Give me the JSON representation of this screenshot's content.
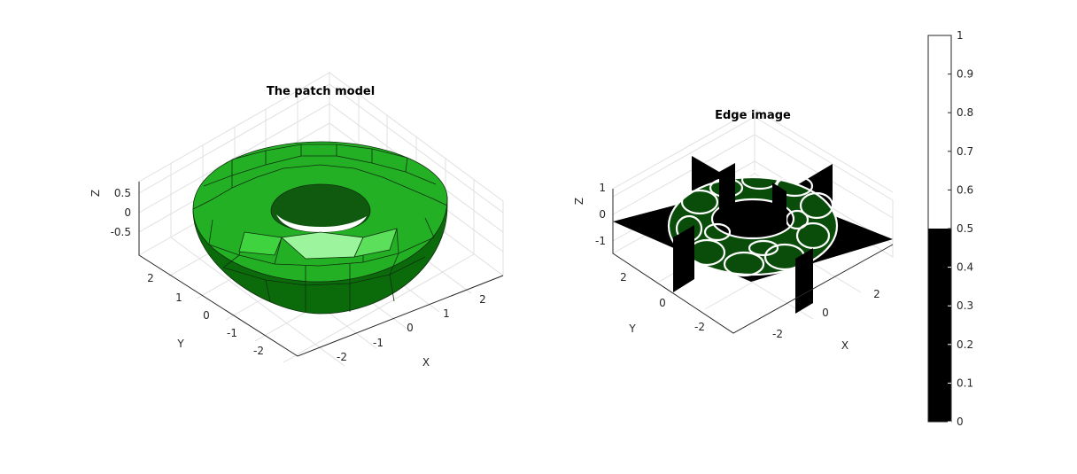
{
  "chart_data": [
    {
      "type": "3d-surface",
      "title": "The patch model",
      "xlabel": "X",
      "ylabel": "Y",
      "zlabel": "Z",
      "xticks": [
        "-2",
        "-1",
        "0",
        "1",
        "2"
      ],
      "yticks": [
        "-2",
        "-1",
        "0",
        "1",
        "2"
      ],
      "zticks": [
        "-0.5",
        "0",
        "0.5"
      ],
      "xlim": [
        -3,
        3
      ],
      "ylim": [
        -3,
        3
      ],
      "zlim": [
        -1,
        1
      ],
      "grid": true,
      "surface": "torus",
      "torus_major_radius": 2,
      "torus_minor_radius": 1,
      "face_color": "#22cc22",
      "edge_color": "#000000"
    },
    {
      "type": "3d-slice",
      "title": "Edge image",
      "xlabel": "X",
      "ylabel": "Y",
      "zlabel": "Z",
      "xticks": [
        "-2",
        "0",
        "2"
      ],
      "yticks": [
        "-2",
        "0",
        "2"
      ],
      "zticks": [
        "-1",
        "0",
        "1"
      ],
      "xlim": [
        -3,
        3
      ],
      "ylim": [
        -3,
        3
      ],
      "zlim": [
        -1.5,
        1.5
      ],
      "grid": true,
      "slice_planes": [
        "x=0",
        "y=0",
        "z=0"
      ],
      "colormap": "gray",
      "colorbar": {
        "ticks": [
          "0",
          "0.1",
          "0.2",
          "0.3",
          "0.4",
          "0.5",
          "0.6",
          "0.7",
          "0.8",
          "0.9",
          "1"
        ],
        "levels": [
          {
            "from": 0,
            "to": 0.5,
            "color": "#000000"
          },
          {
            "from": 0.5,
            "to": 1,
            "color": "#ffffff"
          }
        ],
        "placement": "right"
      }
    }
  ]
}
